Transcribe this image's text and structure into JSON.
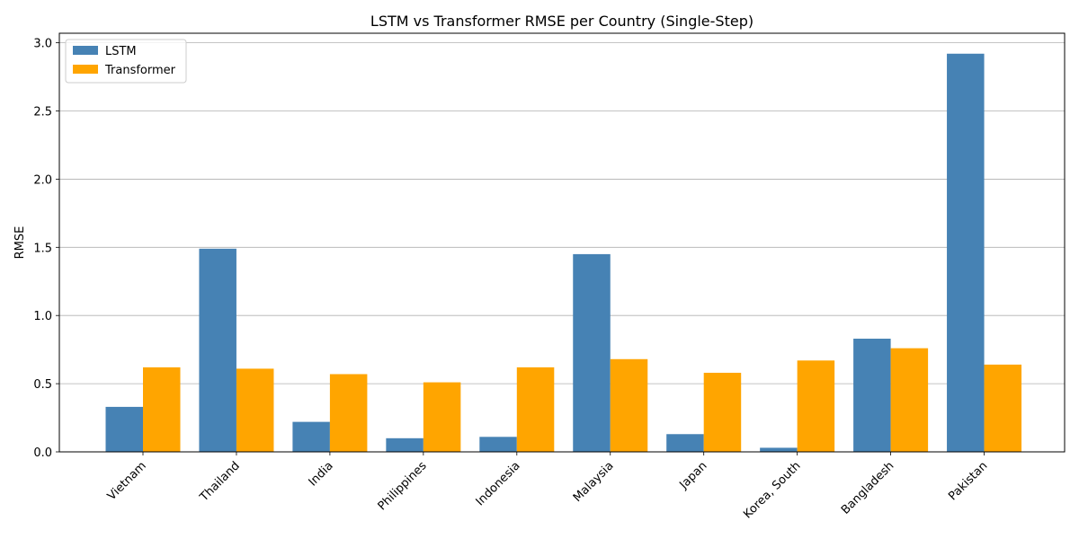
{
  "chart_data": {
    "type": "bar",
    "title": "LSTM vs Transformer RMSE per Country (Single-Step)",
    "xlabel": "",
    "ylabel": "RMSE",
    "categories": [
      "Vietnam",
      "Thailand",
      "India",
      "Philippines",
      "Indonesia",
      "Malaysia",
      "Japan",
      "Korea, South",
      "Bangladesh",
      "Pakistan"
    ],
    "series": [
      {
        "name": "LSTM",
        "color": "#4682b4",
        "values": [
          0.33,
          1.49,
          0.22,
          0.1,
          0.11,
          1.45,
          0.13,
          0.03,
          0.83,
          2.92
        ]
      },
      {
        "name": "Transformer",
        "color": "#ffa500",
        "values": [
          0.62,
          0.61,
          0.57,
          0.51,
          0.62,
          0.68,
          0.58,
          0.67,
          0.76,
          0.64
        ]
      }
    ],
    "ylim": [
      0,
      3.07
    ],
    "yticks": [
      "0.0",
      "0.5",
      "1.0",
      "1.5",
      "2.0",
      "2.5",
      "3.0"
    ],
    "grid": "y-major",
    "legend_position": "top-left"
  }
}
